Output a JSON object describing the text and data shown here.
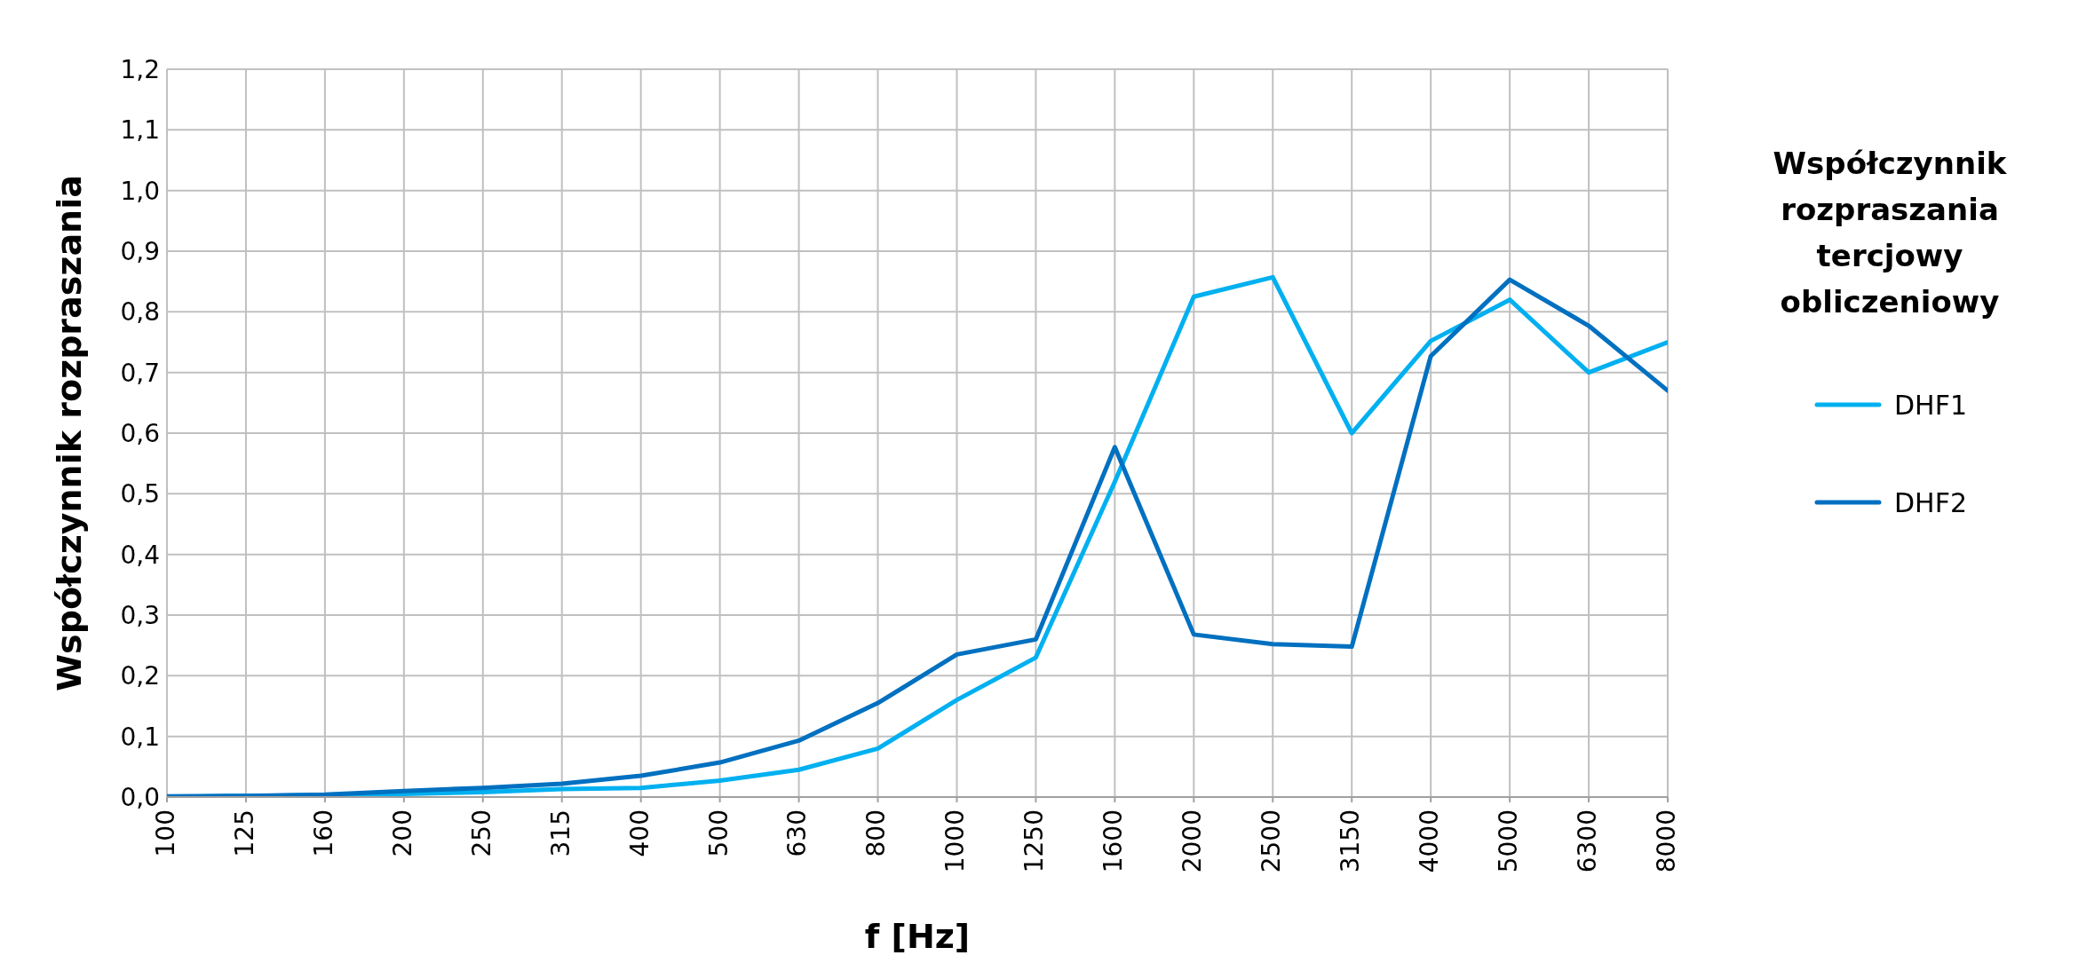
{
  "chart_data": {
    "type": "line",
    "xlabel": "f [Hz]",
    "ylabel": "Współczynnik rozpraszania",
    "legend_title": "Współczynnik rozpraszania tercjowy obliczeniowy",
    "categories": [
      "100",
      "125",
      "160",
      "200",
      "250",
      "315",
      "400",
      "500",
      "630",
      "800",
      "1000",
      "1250",
      "1600",
      "2000",
      "2500",
      "3150",
      "4000",
      "5000",
      "6300",
      "8000"
    ],
    "series": [
      {
        "name": "DHF1",
        "color": "#00b0f0",
        "values": [
          0.0,
          0.002,
          0.003,
          0.005,
          0.008,
          0.013,
          0.015,
          0.027,
          0.045,
          0.08,
          0.16,
          0.23,
          0.52,
          0.825,
          0.857,
          0.6,
          0.752,
          0.82,
          0.7,
          0.75
        ]
      },
      {
        "name": "DHF2",
        "color": "#0070c0",
        "values": [
          0.001,
          0.002,
          0.004,
          0.01,
          0.015,
          0.022,
          0.035,
          0.057,
          0.093,
          0.155,
          0.235,
          0.26,
          0.577,
          0.268,
          0.252,
          0.248,
          0.727,
          0.853,
          0.777,
          0.67
        ]
      }
    ],
    "ylim": [
      0,
      1.2
    ],
    "yticks": [
      {
        "value": 0,
        "label": "0,0"
      },
      {
        "value": 0.1,
        "label": "0,1"
      },
      {
        "value": 0.2,
        "label": "0,2"
      },
      {
        "value": 0.3,
        "label": "0,3"
      },
      {
        "value": 0.4,
        "label": "0,4"
      },
      {
        "value": 0.5,
        "label": "0,5"
      },
      {
        "value": 0.6,
        "label": "0,6"
      },
      {
        "value": 0.7,
        "label": "0,7"
      },
      {
        "value": 0.8,
        "label": "0,8"
      },
      {
        "value": 0.9,
        "label": "0,9"
      },
      {
        "value": 1.0,
        "label": "1,0"
      },
      {
        "value": 1.1,
        "label": "1,1"
      },
      {
        "value": 1.2,
        "label": "1,2"
      }
    ],
    "grid": true,
    "legend": "right",
    "marker": "none",
    "line_style": "solid"
  }
}
